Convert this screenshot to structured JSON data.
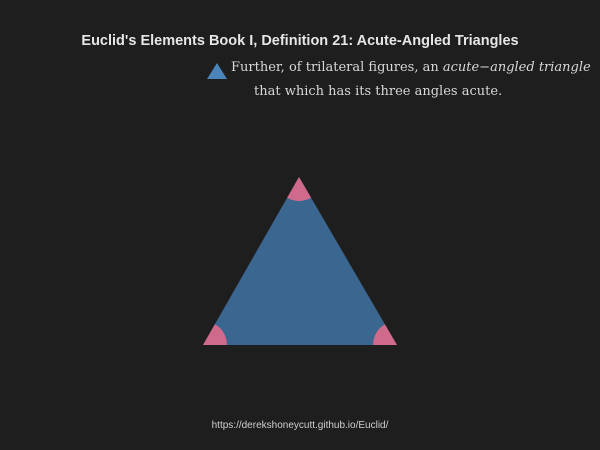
{
  "title": "Euclid's Elements Book I, Definition 21: Acute-Angled Triangles",
  "definition": {
    "prefix": "Further, of trilateral figures, an ",
    "term": "acute−angled triangle",
    "line2": "that which has its three angles acute."
  },
  "footer": {
    "url": "https://derekshoneycutt.github.io/Euclid/"
  },
  "colors": {
    "background": "#1e1e1e",
    "triangle": "#3a6690",
    "legend_triangle": "#4a84b8",
    "angle_marker": "#cf6a8c"
  },
  "icons": {
    "legend": "triangle-icon"
  }
}
